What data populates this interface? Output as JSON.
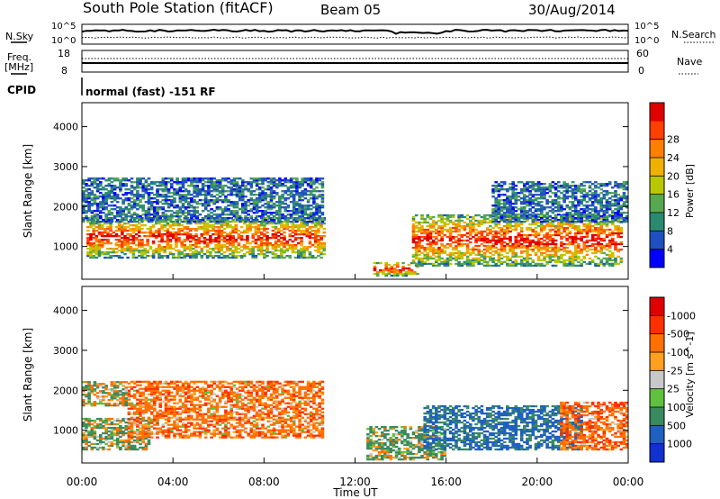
{
  "header": {
    "title": "South Pole Station (fitACF)",
    "beam": "Beam 05",
    "date": "30/Aug/2014"
  },
  "top_panels": {
    "nsky_label": "N.Sky",
    "nsky_ticks": [
      "10^5",
      "10^0"
    ],
    "nsearch_label": "N.Search",
    "nsearch_ticks": [
      "10^5",
      "10^0"
    ],
    "freq_label_1": "Freq.",
    "freq_label_2": "[MHz]",
    "freq_ticks": [
      "18",
      "8"
    ],
    "nave_label": "Nave",
    "nave_ticks": [
      "60",
      "0"
    ],
    "cpid_label": "CPID",
    "cpid_text": "normal (fast) -151 RF"
  },
  "chart_data": [
    {
      "type": "heatmap",
      "name": "power",
      "ylabel": "Slant Range [km]",
      "yticks": [
        1000,
        2000,
        3000,
        4000
      ],
      "ylim": [
        180,
        4600
      ],
      "xlim_hours": [
        0,
        24
      ],
      "colorbar": {
        "label": "Power [dB]",
        "ticks": [
          "4",
          "8",
          "12",
          "16",
          "20",
          "24",
          "28"
        ],
        "colors": [
          "#0000ff",
          "#2050c0",
          "#2a8a70",
          "#58a850",
          "#b8c800",
          "#f0b000",
          "#ff8000",
          "#ff4000",
          "#e00000"
        ]
      },
      "regions": [
        {
          "t": [
            0.2,
            10.6
          ],
          "r": [
            700,
            1700
          ],
          "level": "high"
        },
        {
          "t": [
            0.0,
            10.6
          ],
          "r": [
            1600,
            2700
          ],
          "level": "low"
        },
        {
          "t": [
            12.8,
            14.8
          ],
          "r": [
            250,
            600
          ],
          "level": "high"
        },
        {
          "t": [
            14.5,
            23.7
          ],
          "r": [
            500,
            1800
          ],
          "level": "high"
        },
        {
          "t": [
            18.0,
            24.0
          ],
          "r": [
            1600,
            2600
          ],
          "level": "low"
        }
      ]
    },
    {
      "type": "heatmap",
      "name": "velocity",
      "ylabel": "Slant Range [km]",
      "yticks": [
        1000,
        2000,
        3000,
        4000
      ],
      "ylim": [
        180,
        4600
      ],
      "xlim_hours": [
        0,
        24
      ],
      "colorbar": {
        "label": "Velocity [m s^-1]",
        "ticks": [
          "1000",
          "500",
          "100",
          "25",
          "-25",
          "-100",
          "-500",
          "-1000"
        ],
        "colors": [
          "#1030d0",
          "#2060c0",
          "#3a8a60",
          "#60c040",
          "#c8c8c8",
          "#ffa020",
          "#ff7000",
          "#ff3000",
          "#e00000"
        ]
      },
      "regions": [
        {
          "t": [
            0.0,
            3.0
          ],
          "r": [
            500,
            1300
          ],
          "mean": 120
        },
        {
          "t": [
            2.0,
            10.6
          ],
          "r": [
            800,
            2200
          ],
          "mean": -300
        },
        {
          "t": [
            0.0,
            2.0
          ],
          "r": [
            1600,
            2200
          ],
          "mean": 0
        },
        {
          "t": [
            12.5,
            16.0
          ],
          "r": [
            250,
            1100
          ],
          "mean": 150
        },
        {
          "t": [
            15.0,
            22.0
          ],
          "r": [
            500,
            1600
          ],
          "mean": 600
        },
        {
          "t": [
            21.0,
            24.0
          ],
          "r": [
            500,
            1700
          ],
          "mean": -350
        }
      ]
    }
  ],
  "time_axis": {
    "label": "Time UT",
    "ticks": [
      "00:00",
      "04:00",
      "08:00",
      "12:00",
      "16:00",
      "20:00",
      "00:00"
    ]
  }
}
